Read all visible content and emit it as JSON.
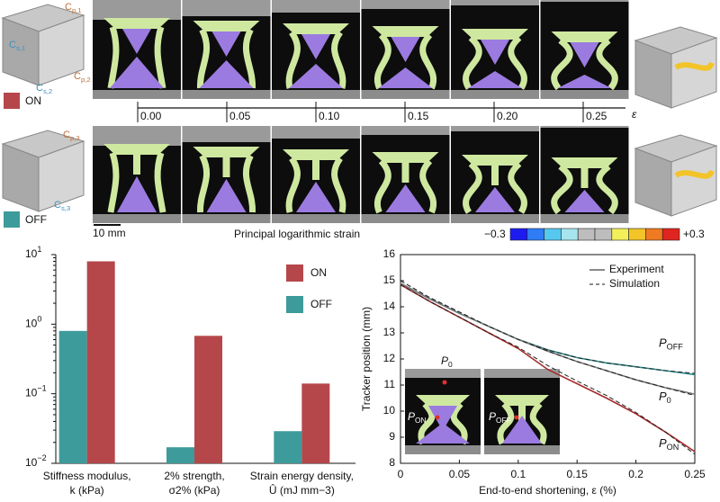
{
  "top": {
    "on_label": "ON",
    "off_label": "OFF",
    "on_color": "#b5474b",
    "off_color": "#3d9b9b",
    "model_labels": [
      {
        "base": "C",
        "sub": "p,1"
      },
      {
        "base": "C",
        "sub": "s,1"
      },
      {
        "base": "C",
        "sub": "p,2"
      },
      {
        "base": "C",
        "sub": "s,2"
      },
      {
        "base": "C",
        "sub": "p,3"
      },
      {
        "base": "C",
        "sub": "s,3"
      }
    ],
    "strain_ticks": [
      "0.00",
      "0.05",
      "0.10",
      "0.15",
      "0.20",
      "0.25"
    ],
    "strain_symbol": "ε",
    "scale_bar": "10 mm",
    "colorbar": {
      "title": "Principal logarithmic strain",
      "min": "−0.3",
      "max": "+0.3",
      "colors": [
        "#1c1cf0",
        "#2f7cf5",
        "#56c8ee",
        "#a6e4ee",
        "#bdbdbd",
        "#bdbdbd",
        "#f2ef5a",
        "#f2c428",
        "#ef7a22",
        "#e0241f"
      ]
    }
  },
  "chart_data": [
    {
      "type": "bar",
      "log_scale": true,
      "categories": [
        [
          "Stiffness modulus,",
          "k (kPa)"
        ],
        [
          "2% strength,",
          "σ2% (kPa)"
        ],
        [
          "Strain energy density,",
          "Û (mJ mm−3)"
        ]
      ],
      "series": [
        {
          "name": "OFF",
          "color": "#3d9b9b",
          "values": [
            0.8,
            0.017,
            0.029
          ]
        },
        {
          "name": "ON",
          "color": "#b5474b",
          "values": [
            8,
            0.68,
            0.14
          ]
        }
      ],
      "ylim": [
        0.01,
        10
      ],
      "yticks": [
        {
          "value": 0.01,
          "label": "10",
          "exponent": "−2"
        },
        {
          "value": 0.1,
          "label": "10",
          "exponent": "−1"
        },
        {
          "value": 1,
          "label": "10",
          "exponent": "0"
        },
        {
          "value": 10,
          "label": "10",
          "exponent": "1"
        }
      ],
      "legend": "upper right"
    },
    {
      "type": "line",
      "x": [
        0,
        0.025,
        0.05,
        0.075,
        0.1,
        0.125,
        0.15,
        0.175,
        0.2,
        0.225,
        0.25
      ],
      "series": [
        {
          "name": "P",
          "sub": "OFF",
          "color": "#2a8c8c",
          "values": [
            14.9,
            14.3,
            13.75,
            13.25,
            12.75,
            12.35,
            12.05,
            11.85,
            11.7,
            11.55,
            11.4
          ],
          "simulation": [
            15.0,
            14.35,
            13.8,
            13.25,
            12.75,
            12.35,
            12.05,
            11.85,
            11.7,
            11.55,
            11.45
          ]
        },
        {
          "name": "P",
          "sub": "0",
          "color": "#777777",
          "values": [
            14.9,
            14.3,
            13.75,
            13.25,
            12.75,
            12.3,
            11.9,
            11.55,
            11.2,
            10.9,
            10.65
          ],
          "simulation": [
            15.0,
            14.35,
            13.8,
            13.25,
            12.75,
            12.3,
            11.9,
            11.55,
            11.2,
            10.9,
            10.6
          ]
        },
        {
          "name": "P",
          "sub": "ON",
          "color": "#a52a2a",
          "values": [
            14.85,
            14.2,
            13.6,
            13.0,
            12.4,
            11.6,
            11.05,
            10.5,
            9.9,
            9.2,
            8.45
          ],
          "simulation": [
            14.85,
            14.2,
            13.6,
            13.0,
            12.45,
            11.75,
            11.15,
            10.6,
            9.95,
            9.2,
            8.35
          ]
        }
      ],
      "xlim": [
        0,
        0.25
      ],
      "xticks": [
        0,
        0.05,
        0.1,
        0.15,
        0.2,
        0.25
      ],
      "ylim": [
        8,
        16
      ],
      "yticks": [
        8,
        9,
        10,
        11,
        12,
        13,
        14,
        15,
        16
      ],
      "xlabel": "End-to-end shortening, ε (%)",
      "ylabel": "Tracker position (mm)",
      "legend": [
        {
          "label": "Experiment",
          "dash": false
        },
        {
          "label": "Simulation",
          "dash": true
        }
      ]
    }
  ]
}
